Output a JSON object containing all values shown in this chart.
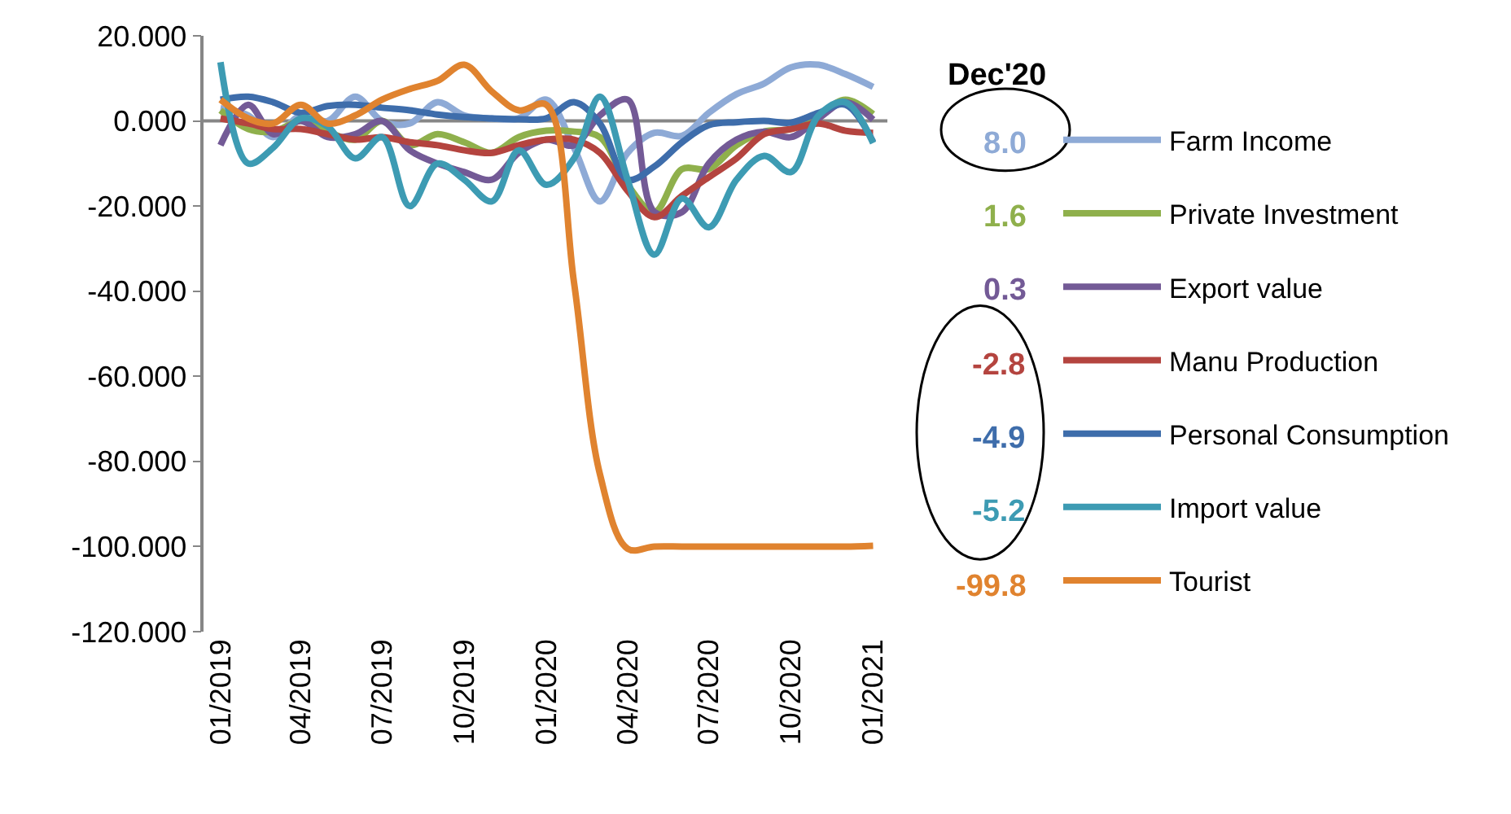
{
  "chart_data": {
    "type": "line",
    "x": [
      "2019-01",
      "2019-02",
      "2019-03",
      "2019-04",
      "2019-05",
      "2019-06",
      "2019-07",
      "2019-08",
      "2019-09",
      "2019-10",
      "2019-11",
      "2019-12",
      "2020-01",
      "2020-02",
      "2020-03",
      "2020-04",
      "2020-05",
      "2020-06",
      "2020-07",
      "2020-08",
      "2020-09",
      "2020-10",
      "2020-11",
      "2020-12",
      "2021-01"
    ],
    "xlim": [
      "2018-12-13",
      "2021-01-17"
    ],
    "xticks": [
      {
        "value": "2019-01",
        "label": "01/2019"
      },
      {
        "value": "2019-04",
        "label": "04/2019"
      },
      {
        "value": "2019-07",
        "label": "07/2019"
      },
      {
        "value": "2019-10",
        "label": "10/2019"
      },
      {
        "value": "2020-01",
        "label": "01/2020"
      },
      {
        "value": "2020-04",
        "label": "04/2020"
      },
      {
        "value": "2020-07",
        "label": "07/2020"
      },
      {
        "value": "2020-10",
        "label": "10/2020"
      },
      {
        "value": "2021-01",
        "label": "01/2021"
      }
    ],
    "ylim": [
      -120,
      20
    ],
    "yticks": [
      {
        "value": 20,
        "label": "20.000"
      },
      {
        "value": 0,
        "label": "0.000"
      },
      {
        "value": -20,
        "label": "-20.000"
      },
      {
        "value": -40,
        "label": "-40.000"
      },
      {
        "value": -60,
        "label": "-60.000"
      },
      {
        "value": -80,
        "label": "-80.000"
      },
      {
        "value": -100,
        "label": "-100.000"
      },
      {
        "value": -120,
        "label": "-120.000"
      }
    ],
    "grid": false,
    "legend": "right",
    "marker": "none",
    "line_style": "solid",
    "annotations": [
      "Dec'20",
      "8.0",
      "1.6",
      "0.3",
      "-2.8",
      "-4.9",
      "-5.2",
      "-99.8"
    ],
    "ref_lines": [
      {
        "axis": "y",
        "value": 0,
        "color": "#868686"
      }
    ],
    "series": [
      {
        "name": "Farm Income",
        "color": "#8eaad6",
        "values": [
          3,
          1.3,
          -3.8,
          1.3,
          0,
          5.7,
          0,
          -0.6,
          4.4,
          1.3,
          0.6,
          0.6,
          5,
          -6.3,
          -18.9,
          -7.5,
          -2.8,
          -3.5,
          1.9,
          6.3,
          8.8,
          12.6,
          13.2,
          11,
          8.0
        ]
      },
      {
        "name": "Private Investment",
        "color": "#8fb04c",
        "values": [
          2.5,
          -1.9,
          -2.5,
          0,
          -2.5,
          -4.4,
          0,
          -5.7,
          -3.1,
          -5,
          -7.5,
          -3.8,
          -2.3,
          -2.5,
          -3.8,
          -15,
          -21.4,
          -11.3,
          -11.3,
          -5.7,
          -2.5,
          -1.9,
          1.3,
          5,
          1.6
        ]
      },
      {
        "name": "Export value",
        "color": "#735a96",
        "values": [
          -5.7,
          3.8,
          -3.1,
          0,
          -3.8,
          -3.1,
          0,
          -6.9,
          -10,
          -12,
          -13.8,
          -7.5,
          -4.4,
          -5.7,
          1.3,
          5,
          -21.4,
          -21.4,
          -10,
          -4.4,
          -2.5,
          -3.8,
          0.6,
          4.4,
          0.3
        ]
      },
      {
        "name": "Manu Production",
        "color": "#b4443f",
        "values": [
          0.6,
          -0.6,
          -1.9,
          -1.9,
          -3.1,
          -4.4,
          -3.8,
          -5,
          -5.7,
          -6.9,
          -7.5,
          -5.7,
          -4.4,
          -4.4,
          -7.5,
          -16.4,
          -22.6,
          -17.6,
          -13.2,
          -8.8,
          -3.1,
          -1.9,
          -0.6,
          -2.3,
          -2.8
        ]
      },
      {
        "name": "Personal Consumption",
        "color": "#3e6dab",
        "values": [
          5,
          5.7,
          4.4,
          1.9,
          3.5,
          3.8,
          3.1,
          2.5,
          1.5,
          0.9,
          0.6,
          0.4,
          0.6,
          4.4,
          -0.6,
          -13.8,
          -10.7,
          -5,
          -1,
          -0.3,
          0,
          -0.4,
          1.9,
          3.8,
          -4.9
        ]
      },
      {
        "name": "Import value",
        "color": "#3d9bb3",
        "values": [
          13.8,
          -10,
          -6.3,
          0.6,
          -1.3,
          -8.8,
          -3.8,
          -20,
          -10,
          -13.8,
          -18.9,
          -6.9,
          -15,
          -8.8,
          5.7,
          -13.8,
          -31.4,
          -18.2,
          -25,
          -13.8,
          -8.2,
          -12,
          1.3,
          4.4,
          -5.2
        ]
      },
      {
        "name": "Tourist",
        "color": "#e0832f",
        "values": [
          5,
          0.6,
          -0.6,
          3.8,
          -0.6,
          1.3,
          5,
          7.5,
          9.4,
          13.2,
          6.9,
          2.5,
          3.8,
          -38,
          -83,
          -100.5,
          -100,
          -100,
          -100,
          -100,
          -100,
          -100,
          -100,
          -100,
          -99.8
        ]
      }
    ]
  }
}
